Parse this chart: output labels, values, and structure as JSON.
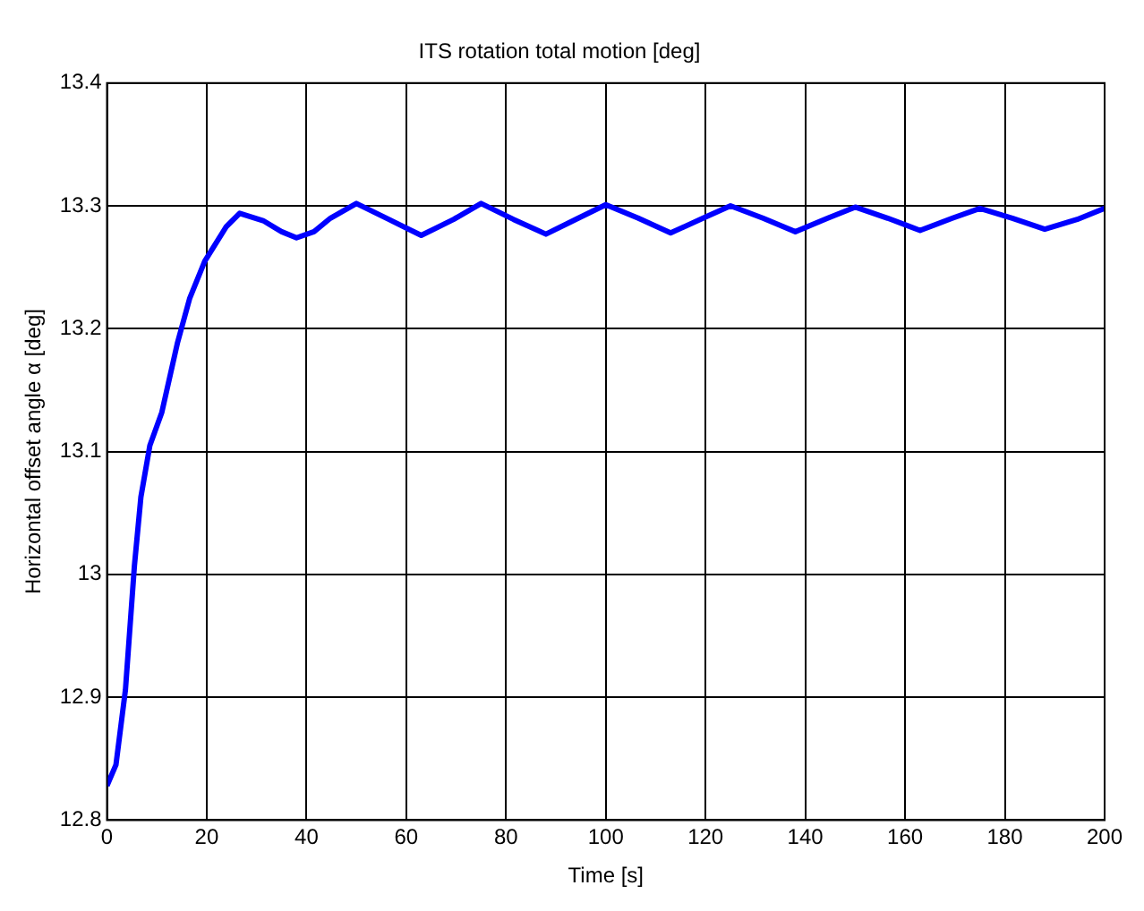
{
  "chart_data": {
    "type": "line",
    "title": "ITS rotation total motion [deg]",
    "xlabel": "Time [s]",
    "ylabel": "Horizontal offset angle α [deg]",
    "series": [
      {
        "color": "#0000ff",
        "x": [
          0,
          1.8,
          3.7,
          5.5,
          6.8,
          8.6,
          11,
          14.1,
          16.6,
          19.6,
          23.9,
          26.6,
          31.3,
          35,
          38,
          41.5,
          44.8,
          50,
          56.5,
          63,
          69.5,
          75,
          81.5,
          88,
          94.5,
          100,
          106.5,
          113,
          119.5,
          125,
          131.5,
          138,
          144.5,
          150,
          156.5,
          163,
          169.5,
          175,
          181.5,
          188,
          194.5,
          200
        ],
        "values": [
          12.828,
          12.845,
          12.906,
          13.007,
          13.063,
          13.105,
          13.132,
          13.188,
          13.225,
          13.255,
          13.283,
          13.294,
          13.288,
          13.279,
          13.274,
          13.279,
          13.29,
          13.302,
          13.289,
          13.276,
          13.289,
          13.302,
          13.289,
          13.277,
          13.29,
          13.301,
          13.29,
          13.278,
          13.29,
          13.3,
          13.29,
          13.279,
          13.29,
          13.299,
          13.29,
          13.28,
          13.29,
          13.298,
          13.29,
          13.281,
          13.289,
          13.298
        ]
      }
    ],
    "xlim": [
      0,
      200
    ],
    "xticks": [
      0,
      20,
      40,
      60,
      80,
      100,
      120,
      140,
      160,
      180,
      200
    ],
    "ylim": [
      12.8,
      13.4
    ],
    "yticks": [
      12.8,
      12.9,
      13,
      13.1,
      13.2,
      13.3,
      13.4
    ],
    "grid": true,
    "legend": false,
    "marker": "none",
    "line_style": "solid"
  }
}
